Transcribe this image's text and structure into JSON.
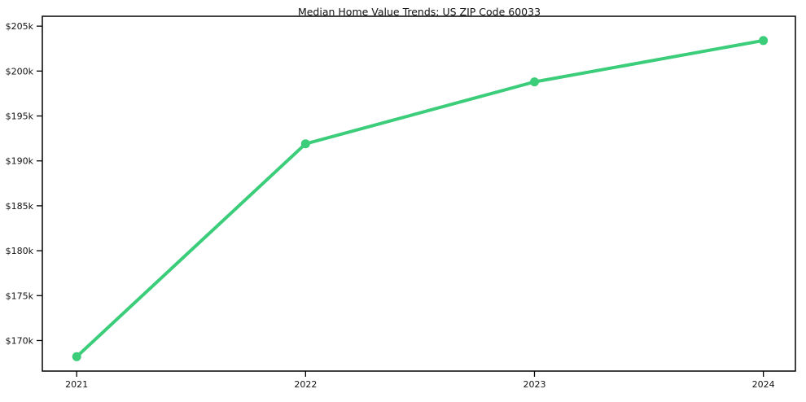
{
  "chart_data": {
    "type": "line",
    "title": "Median Home Value Trends: US ZIP Code 60033",
    "xlabel": "",
    "ylabel": "",
    "x": [
      2021,
      2022,
      2023,
      2024
    ],
    "series": [
      {
        "name": "Median Home Value",
        "values": [
          168200,
          191900,
          198800,
          203400
        ]
      }
    ],
    "x_tick_labels": [
      "2021",
      "2022",
      "2023",
      "2024"
    ],
    "y_ticks": {
      "values": [
        170000,
        175000,
        180000,
        185000,
        190000,
        195000,
        200000,
        205000
      ],
      "labels": [
        "$170k",
        "$175k",
        "$180k",
        "$185k",
        "$190k",
        "$195k",
        "$200k",
        "$205k"
      ]
    },
    "xlim": [
      2020.85,
      2024.14
    ],
    "ylim": [
      166600,
      206100
    ],
    "grid": false,
    "legend": null,
    "line_color": "#3bcd7a",
    "marker_color": "#3bcd7a",
    "spine_color": "#000000",
    "text_color": "#111111"
  }
}
